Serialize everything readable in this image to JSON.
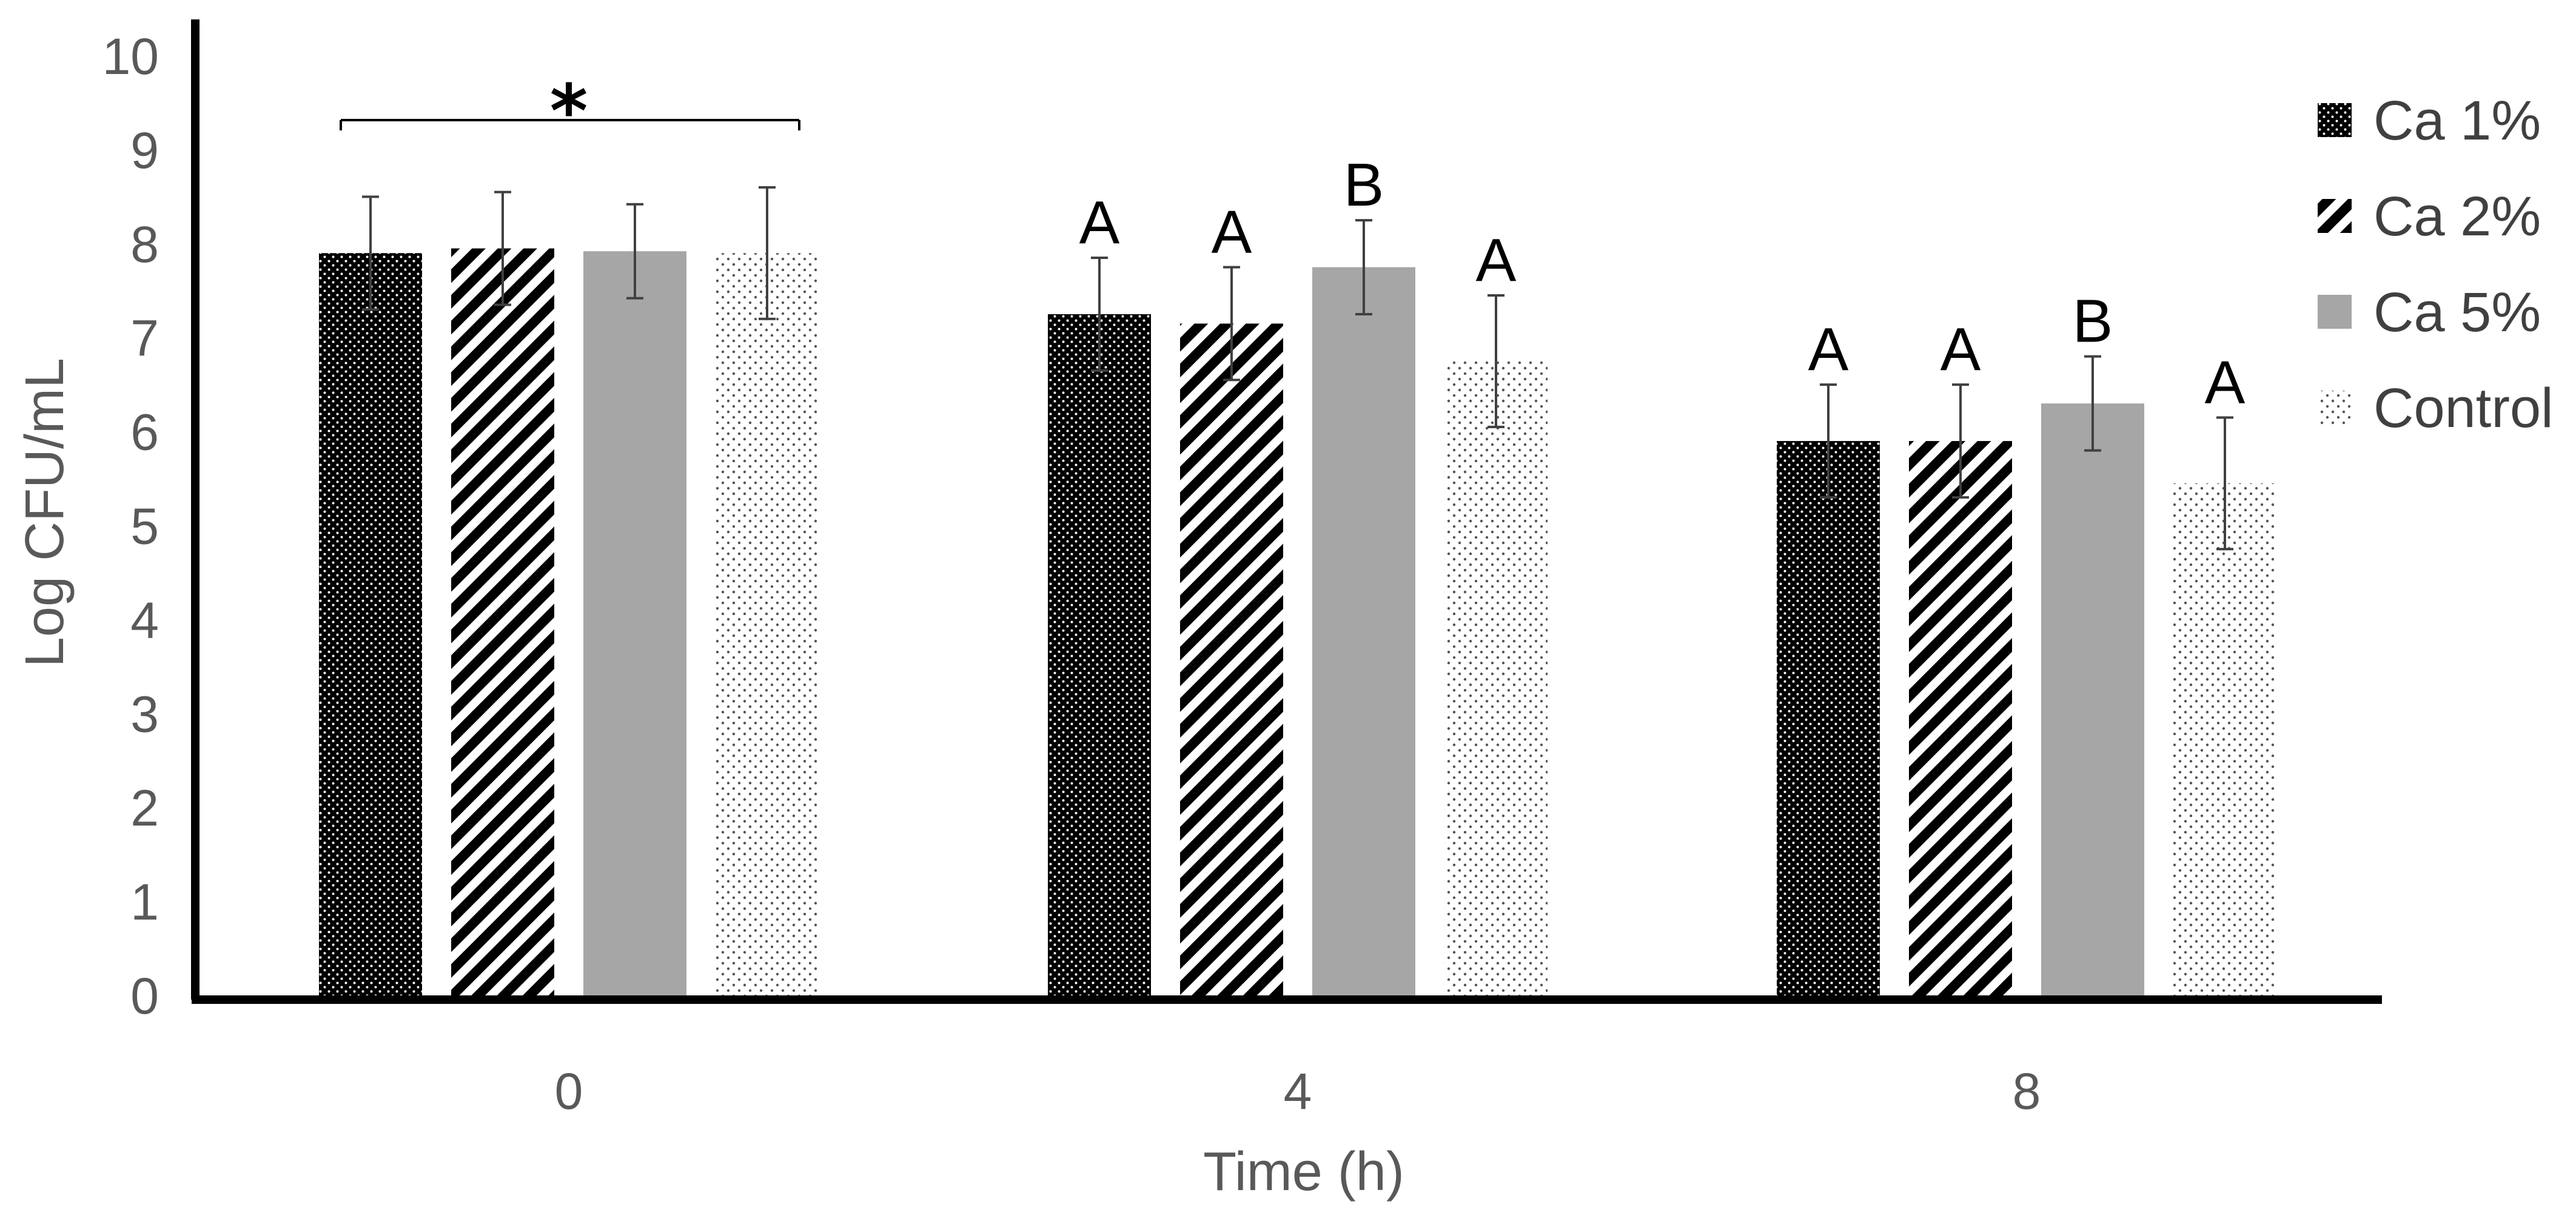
{
  "chart_data": {
    "type": "bar",
    "title": "",
    "xlabel": "Time (h)",
    "ylabel": "Log CFU/mL",
    "ylim": [
      0,
      10
    ],
    "yticks": [
      "0",
      "1",
      "2",
      "3",
      "4",
      "5",
      "6",
      "7",
      "8",
      "9",
      "10"
    ],
    "categories": [
      "0",
      "4",
      "8"
    ],
    "series": [
      {
        "name": "Ca 1%",
        "pattern": "dense-dots",
        "values": [
          7.9,
          7.25,
          5.9
        ],
        "errors": [
          0.6,
          0.6,
          0.6
        ],
        "letters": [
          "",
          "A",
          "A"
        ]
      },
      {
        "name": "Ca 2%",
        "pattern": "diagonal-stripes",
        "values": [
          7.95,
          7.15,
          5.9
        ],
        "errors": [
          0.6,
          0.6,
          0.6
        ],
        "letters": [
          "",
          "A",
          "A"
        ]
      },
      {
        "name": "Ca 5%",
        "pattern": "solid-gray",
        "values": [
          7.92,
          7.75,
          6.3
        ],
        "errors": [
          0.5,
          0.5,
          0.5
        ],
        "letters": [
          "",
          "B",
          "B"
        ]
      },
      {
        "name": "Control",
        "pattern": "sparse-dots",
        "values": [
          7.9,
          6.75,
          5.45
        ],
        "errors": [
          0.7,
          0.7,
          0.7
        ],
        "letters": [
          "",
          "A",
          "A"
        ]
      }
    ],
    "annotations": [
      {
        "text": "*",
        "group": "0",
        "type": "bracket"
      }
    ],
    "legend": "right",
    "grid": false
  },
  "colors": {
    "axis": "#000000",
    "tick_text": "#595959",
    "bar_gray": "#a6a6a6",
    "error_bar": "#404040",
    "ink": "#000000"
  }
}
